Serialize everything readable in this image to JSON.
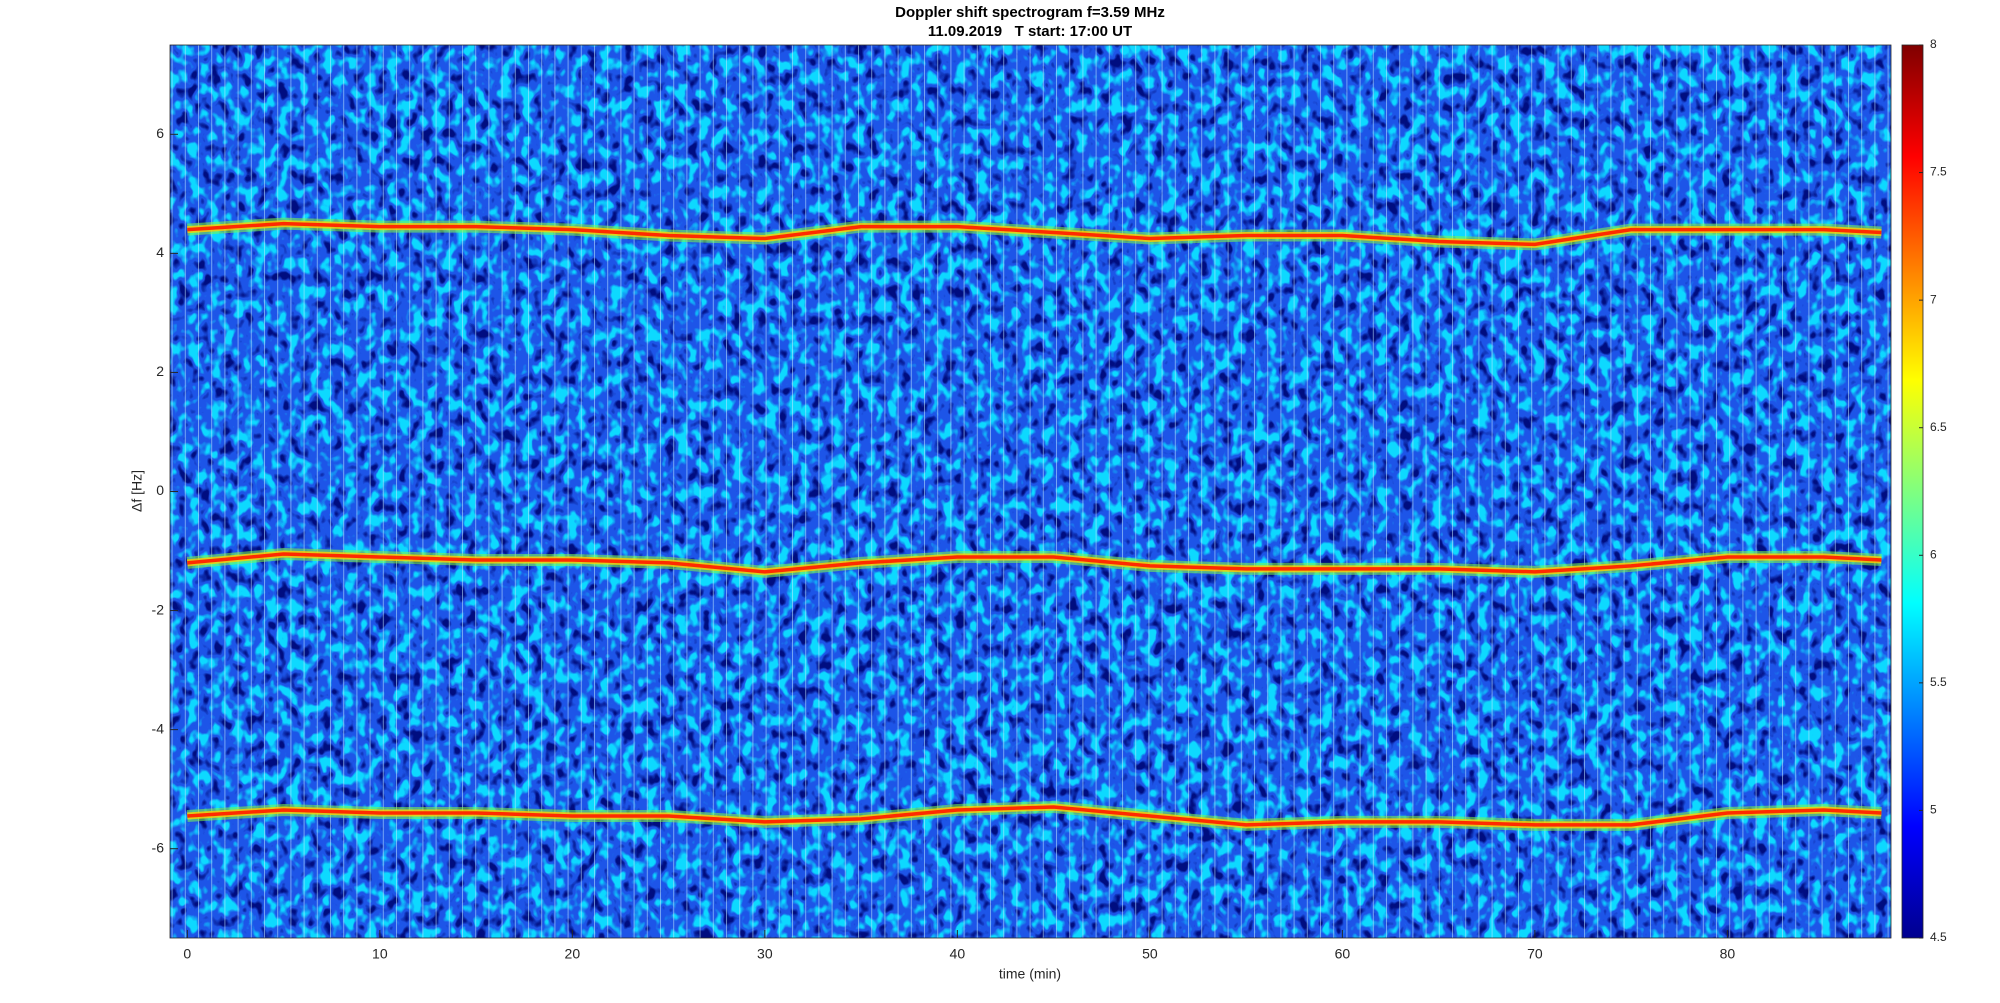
{
  "chart_data": {
    "type": "spectrogram",
    "title": "Doppler shift spectrogram f=3.59 MHz",
    "subtitle": "11.09.2019   T start: 17:00 UT",
    "x_label": "time (min)",
    "y_label": "Δf [Hz]",
    "xlim": [
      -0.9,
      88.5
    ],
    "xticks": [
      0,
      10,
      20,
      30,
      40,
      50,
      60,
      70,
      80
    ],
    "ylim": [
      -7.5,
      7.5
    ],
    "yticks": [
      -6,
      -4,
      -2,
      0,
      2,
      4,
      6
    ],
    "clim": [
      4.5,
      8
    ],
    "cticks": [
      4.5,
      5,
      5.5,
      6,
      6.5,
      7,
      7.5,
      8
    ],
    "colormap": "jet",
    "x": [
      0,
      5,
      10,
      15,
      20,
      25,
      30,
      35,
      40,
      45,
      50,
      55,
      60,
      65,
      70,
      75,
      80,
      85,
      88
    ],
    "series": [
      {
        "color": "#ff2a00",
        "values": [
          4.4,
          4.5,
          4.45,
          4.45,
          4.4,
          4.3,
          4.25,
          4.45,
          4.45,
          4.35,
          4.25,
          4.3,
          4.3,
          4.2,
          4.15,
          4.4,
          4.4,
          4.4,
          4.35
        ]
      },
      {
        "color": "#ff2a00",
        "values": [
          -1.2,
          -1.05,
          -1.1,
          -1.15,
          -1.15,
          -1.2,
          -1.35,
          -1.2,
          -1.1,
          -1.1,
          -1.25,
          -1.3,
          -1.3,
          -1.3,
          -1.35,
          -1.25,
          -1.1,
          -1.1,
          -1.15
        ]
      },
      {
        "color": "#ff2a00",
        "values": [
          -5.45,
          -5.35,
          -5.4,
          -5.4,
          -5.45,
          -5.45,
          -5.55,
          -5.5,
          -5.35,
          -5.3,
          -5.45,
          -5.6,
          -5.55,
          -5.55,
          -5.6,
          -5.6,
          -5.4,
          -5.35,
          -5.4
        ]
      }
    ]
  }
}
